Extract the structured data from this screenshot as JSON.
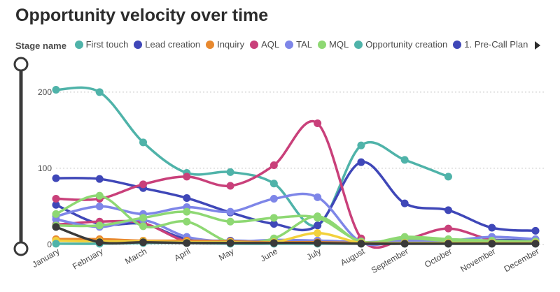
{
  "title": "Opportunity velocity over time",
  "legend": {
    "label": "Stage name",
    "items": [
      {
        "name": "First touch",
        "color": "#4fb3a9"
      },
      {
        "name": "Lead creation",
        "color": "#3f47b8"
      },
      {
        "name": "Inquiry",
        "color": "#e8892f"
      },
      {
        "name": "AQL",
        "color": "#c9407a"
      },
      {
        "name": "TAL",
        "color": "#7e86e8"
      },
      {
        "name": "MQL",
        "color": "#8ed873"
      },
      {
        "name": "Opportunity creation",
        "color": "#4fb3a9"
      },
      {
        "name": "1. Pre-Call Plan",
        "color": "#3f47b8"
      }
    ],
    "next_icon": "chevron-right-icon"
  },
  "chart_data": {
    "type": "line",
    "x": [
      "January",
      "February",
      "March",
      "April",
      "May",
      "June",
      "July",
      "August",
      "September",
      "October",
      "November",
      "December"
    ],
    "ylim": [
      0,
      220
    ],
    "yticks": [
      0,
      100,
      200
    ],
    "grid": "horizontal-dotted",
    "series": [
      {
        "color": "#4fb3a9",
        "values": [
          203,
          200,
          134,
          94,
          95,
          80,
          25,
          130,
          111,
          89,
          null,
          null
        ]
      },
      {
        "color": "#3f47b8",
        "values": [
          87,
          86,
          74,
          61,
          42,
          27,
          25,
          108,
          54,
          45,
          22,
          18
        ]
      },
      {
        "color": "#3f47b8",
        "values": [
          52,
          27,
          27,
          7,
          5,
          4,
          5,
          3,
          4,
          3,
          6,
          5
        ]
      },
      {
        "color": "#c9407a",
        "values": [
          60,
          60,
          79,
          89,
          77,
          104,
          159,
          8,
          7,
          21,
          6,
          3
        ]
      },
      {
        "color": "#c9407a",
        "values": [
          26,
          30,
          28,
          4,
          2,
          3,
          4,
          2,
          3,
          2,
          2,
          2
        ]
      },
      {
        "color": "#7e86e8",
        "values": [
          37,
          50,
          40,
          49,
          43,
          60,
          62,
          3,
          6,
          5,
          10,
          7
        ]
      },
      {
        "color": "#7e86e8",
        "values": [
          33,
          23,
          32,
          10,
          4,
          6,
          5,
          3,
          5,
          4,
          3,
          3
        ]
      },
      {
        "color": "#8ed873",
        "values": [
          40,
          64,
          24,
          30,
          3,
          8,
          37,
          3,
          10,
          7,
          5,
          4
        ]
      },
      {
        "color": "#8ed873",
        "values": [
          25,
          25,
          35,
          43,
          30,
          35,
          35,
          4,
          8,
          5,
          4,
          3
        ]
      },
      {
        "color": "#e8892f",
        "values": [
          7,
          7,
          5,
          5,
          4,
          3,
          3,
          2,
          2,
          2,
          2,
          2
        ]
      },
      {
        "color": "#f2d13c",
        "values": [
          5,
          4,
          4,
          3,
          3,
          3,
          15,
          2,
          2,
          2,
          2,
          2
        ]
      },
      {
        "color": "#4fb3a9",
        "values": [
          1,
          1,
          2,
          2,
          1,
          1,
          1,
          1,
          1,
          1,
          1,
          1
        ]
      },
      {
        "color": "#3a3a3a",
        "values": [
          23,
          3,
          3,
          2,
          2,
          2,
          2,
          1,
          1,
          1,
          1,
          1
        ]
      }
    ]
  }
}
